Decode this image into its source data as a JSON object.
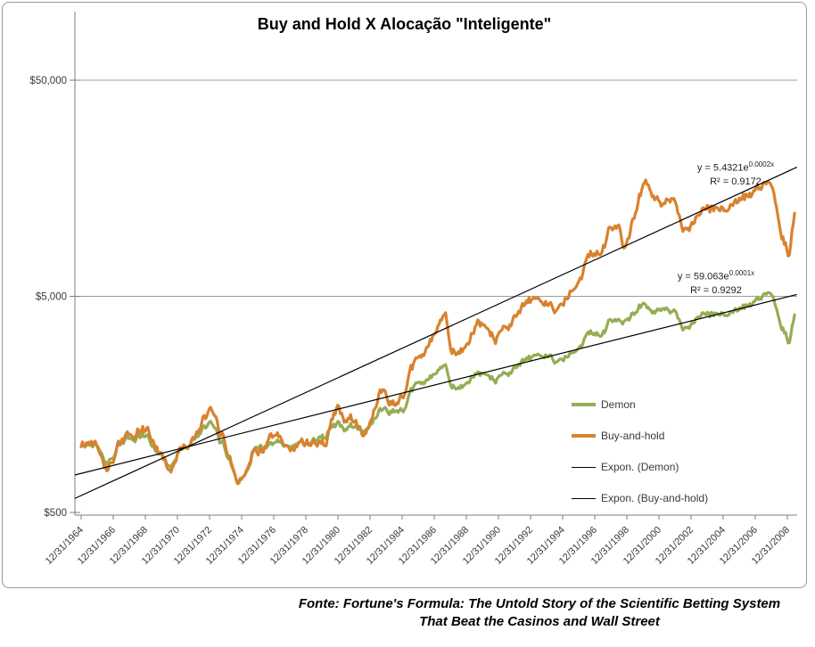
{
  "title": "Buy and Hold X Alocação \"Inteligente\"",
  "footer": {
    "line1": "Fonte: Fortune's Formula: The Untold Story of the Scientific Betting System",
    "line2": "That Beat the Casinos and Wall Street"
  },
  "legend": {
    "items": [
      {
        "label": "Demon",
        "swatch": "green-line"
      },
      {
        "label": "Buy-and-hold",
        "swatch": "orange-line"
      },
      {
        "label": "Expon. (Demon)",
        "swatch": "black-thin-line"
      },
      {
        "label": "Expon. (Buy-and-hold)",
        "swatch": "black-thin-line"
      }
    ]
  },
  "equations": {
    "buy_and_hold": {
      "base": "y = 5.4321e",
      "exponent": "0.0002x",
      "r2": "R² = 0.9172"
    },
    "demon": {
      "base": "y = 59.063e",
      "exponent": "0.0001x",
      "r2": "R² = 0.9292"
    }
  },
  "colors": {
    "demon": "#95AD53",
    "buy_and_hold": "#D8822F",
    "trendline": "#000000",
    "gridline": "#9c9c9c",
    "axis": "#7f7f7f",
    "tick_text": "#3a3a3a"
  },
  "chart_data": {
    "type": "line",
    "title": "Buy and Hold X Alocação \"Inteligente\"",
    "y_axis": {
      "scale": "log",
      "range": [
        500,
        50000
      ],
      "ticks": [
        {
          "label": "$50,000",
          "value": 50000
        },
        {
          "label": "$5,000",
          "value": 5000
        },
        {
          "label": "$500",
          "value": 500
        }
      ]
    },
    "x_axis": {
      "tick_labels": [
        "12/31/1964",
        "12/31/1966",
        "12/31/1968",
        "12/31/1970",
        "12/31/1972",
        "12/31/1974",
        "12/31/1976",
        "12/31/1978",
        "12/31/1980",
        "12/31/1982",
        "12/31/1984",
        "12/31/1986",
        "12/31/1988",
        "12/31/1990",
        "12/31/1992",
        "12/31/1994",
        "12/31/1996",
        "12/31/1998",
        "12/31/2000",
        "12/31/2002",
        "12/31/2004",
        "12/31/2006",
        "12/31/2008"
      ],
      "start_year": 1965,
      "years_per_tick": 2
    },
    "grid": "horizontal",
    "legend_position": "right-center",
    "series": [
      {
        "name": "Demon",
        "color": "#95AD53",
        "keyframes": [
          [
            1965.0,
            1000
          ],
          [
            1966.0,
            1050
          ],
          [
            1966.6,
            900
          ],
          [
            1967.8,
            1090
          ],
          [
            1968.9,
            1120
          ],
          [
            1970.5,
            830
          ],
          [
            1971.3,
            1020
          ],
          [
            1973.0,
            1230
          ],
          [
            1974.0,
            980
          ],
          [
            1974.8,
            700
          ],
          [
            1976.0,
            1060
          ],
          [
            1977.0,
            1020
          ],
          [
            1978.2,
            980
          ],
          [
            1980.0,
            1180
          ],
          [
            1980.9,
            1260
          ],
          [
            1982.5,
            1160
          ],
          [
            1984.0,
            1520
          ],
          [
            1985.0,
            1560
          ],
          [
            1986.0,
            1900
          ],
          [
            1987.7,
            2250
          ],
          [
            1988.0,
            1800
          ],
          [
            1989.5,
            2100
          ],
          [
            1990.8,
            1950
          ],
          [
            1992.0,
            2450
          ],
          [
            1993.0,
            2500
          ],
          [
            1994.0,
            2600
          ],
          [
            1995.0,
            2700
          ],
          [
            1996.0,
            3100
          ],
          [
            1997.0,
            3400
          ],
          [
            1998.0,
            3750
          ],
          [
            1999.0,
            4100
          ],
          [
            2000.1,
            4600
          ],
          [
            2001.0,
            4350
          ],
          [
            2002.0,
            4100
          ],
          [
            2002.8,
            3450
          ],
          [
            2004.0,
            4000
          ],
          [
            2005.0,
            4100
          ],
          [
            2006.0,
            4300
          ],
          [
            2007.0,
            4600
          ],
          [
            2007.8,
            4850
          ],
          [
            2008.3,
            4400
          ],
          [
            2009.15,
            3050
          ],
          [
            2009.45,
            4150
          ]
        ]
      },
      {
        "name": "Buy-and-hold",
        "color": "#D8822F",
        "keyframes": [
          [
            1965.0,
            1000
          ],
          [
            1965.9,
            1080
          ],
          [
            1966.6,
            870
          ],
          [
            1967.8,
            1130
          ],
          [
            1968.9,
            1180
          ],
          [
            1969.5,
            1050
          ],
          [
            1970.5,
            800
          ],
          [
            1971.3,
            1060
          ],
          [
            1972.0,
            1120
          ],
          [
            1973.0,
            1380
          ],
          [
            1974.0,
            1040
          ],
          [
            1974.8,
            700
          ],
          [
            1975.5,
            950
          ],
          [
            1976.8,
            1120
          ],
          [
            1978.2,
            930
          ],
          [
            1979.0,
            1080
          ],
          [
            1980.3,
            1150
          ],
          [
            1980.9,
            1480
          ],
          [
            1981.8,
            1280
          ],
          [
            1982.6,
            1120
          ],
          [
            1983.8,
            1800
          ],
          [
            1984.6,
            1680
          ],
          [
            1985.8,
            2300
          ],
          [
            1986.8,
            3000
          ],
          [
            1987.7,
            3800
          ],
          [
            1988.0,
            2550
          ],
          [
            1989.0,
            3000
          ],
          [
            1989.7,
            3500
          ],
          [
            1990.8,
            2950
          ],
          [
            1992.0,
            4300
          ],
          [
            1993.0,
            4550
          ],
          [
            1994.2,
            4500
          ],
          [
            1995.0,
            5000
          ],
          [
            1996.0,
            6500
          ],
          [
            1997.0,
            8000
          ],
          [
            1997.7,
            9400
          ],
          [
            1998.55,
            10800
          ],
          [
            1998.85,
            8800
          ],
          [
            1999.5,
            12500
          ],
          [
            2000.2,
            17500
          ],
          [
            2000.9,
            14500
          ],
          [
            2001.2,
            12800
          ],
          [
            2001.8,
            13800
          ],
          [
            2002.8,
            9700
          ],
          [
            2003.5,
            10800
          ],
          [
            2004.0,
            12200
          ],
          [
            2005.0,
            12500
          ],
          [
            2006.0,
            13700
          ],
          [
            2007.0,
            14800
          ],
          [
            2007.8,
            15300
          ],
          [
            2008.3,
            13000
          ],
          [
            2008.8,
            9300
          ],
          [
            2009.15,
            7800
          ],
          [
            2009.45,
            12300
          ]
        ]
      }
    ],
    "trendlines": [
      {
        "name": "Expon. (Demon)",
        "equation": "y = 59.063e^0.0001x",
        "r2": 0.9292,
        "start": [
          1964.6,
          745
        ],
        "end": [
          2009.6,
          5100
        ]
      },
      {
        "name": "Expon. (Buy-and-hold)",
        "equation": "y = 5.4321e^0.0002x",
        "r2": 0.9172,
        "start": [
          1964.6,
          580
        ],
        "end": [
          2009.6,
          19800
        ]
      }
    ]
  }
}
